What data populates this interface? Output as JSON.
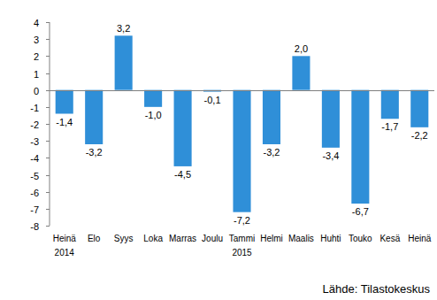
{
  "chart_data": {
    "type": "bar",
    "categories": [
      "Heinä",
      "Elo",
      "Syys",
      "Loka",
      "Marras",
      "Joulu",
      "Tammi",
      "Helmi",
      "Maalis",
      "Huhti",
      "Touko",
      "Kesä",
      "Heinä"
    ],
    "values": [
      -1.4,
      -3.2,
      3.2,
      -1.0,
      -4.5,
      -0.1,
      -7.2,
      -3.2,
      2.0,
      -3.4,
      -6.7,
      -1.7,
      -2.2
    ],
    "value_labels": [
      "-1,4",
      "-3,2",
      "3,2",
      "-1,0",
      "-4,5",
      "-0,1",
      "-7,2",
      "-3,2",
      "2,0",
      "-3,4",
      "-6,7",
      "-1,7",
      "-2,2"
    ],
    "data_labels": true,
    "color": "#2f8fd8",
    "ylim": [
      -8,
      4
    ],
    "yticks": [
      -8,
      -7,
      -6,
      -5,
      -4,
      -3,
      -2,
      -1,
      0,
      1,
      2,
      3,
      4
    ],
    "grid": false,
    "annotations": [
      {
        "text": "2014",
        "category": 0
      },
      {
        "text": "2015",
        "category": 6
      }
    ],
    "source": "Lähde: Tilastokeskus"
  }
}
